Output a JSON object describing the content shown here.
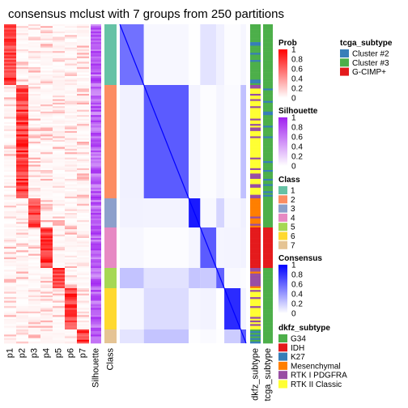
{
  "chart_data": {
    "type": "heatmap",
    "title": "consensus mclust with 7 groups from 250 partitions",
    "prob_columns": [
      "p1",
      "p2",
      "p3",
      "p4",
      "p5",
      "p6",
      "p7"
    ],
    "annotation_columns": {
      "silhouette": "Silhouette",
      "class": "Class",
      "dkfz": "dkfz_subtype",
      "tcga": "tcga_subtype"
    },
    "groups": [
      {
        "class": "1",
        "row_fraction": 0.19,
        "prob_col": 0
      },
      {
        "class": "2",
        "row_fraction": 0.355,
        "prob_col": 1
      },
      {
        "class": "3",
        "row_fraction": 0.092,
        "prob_col": 2
      },
      {
        "class": "4",
        "row_fraction": 0.126,
        "prob_col": 3
      },
      {
        "class": "5",
        "row_fraction": 0.064,
        "prob_col": 4
      },
      {
        "class": "6",
        "row_fraction": 0.13,
        "prob_col": 5
      },
      {
        "class": "7",
        "row_fraction": 0.043,
        "prob_col": 6
      }
    ],
    "legends": {
      "prob": {
        "title": "Prob",
        "ticks": [
          "1",
          "0.8",
          "0.6",
          "0.4",
          "0.2",
          "0"
        ],
        "colors": [
          "#ff0000",
          "#ffffff"
        ]
      },
      "silhouette": {
        "title": "Silhouette",
        "ticks": [
          "1",
          "0.8",
          "0.6",
          "0.4",
          "0.2",
          "0"
        ],
        "colors": [
          "#a020f0",
          "#ffffff"
        ]
      },
      "class": {
        "title": "Class",
        "levels": [
          {
            "label": "1",
            "color": "#66c2a5"
          },
          {
            "label": "2",
            "color": "#fc8d62"
          },
          {
            "label": "3",
            "color": "#8da0cb"
          },
          {
            "label": "4",
            "color": "#e78ac3"
          },
          {
            "label": "5",
            "color": "#a6d854"
          },
          {
            "label": "6",
            "color": "#ffd92f"
          },
          {
            "label": "7",
            "color": "#e5c494"
          }
        ]
      },
      "consensus": {
        "title": "Consensus",
        "ticks": [
          "1",
          "0.8",
          "0.6",
          "0.4",
          "0.2",
          "0"
        ],
        "colors": [
          "#0000ff",
          "#ffffff"
        ]
      },
      "dkfz": {
        "title": "dkfz_subtype",
        "levels": [
          {
            "label": "G34",
            "color": "#4daf4a"
          },
          {
            "label": "IDH",
            "color": "#e41a1c"
          },
          {
            "label": "K27",
            "color": "#377eb8"
          },
          {
            "label": "Mesenchymal",
            "color": "#ff7f00"
          },
          {
            "label": "RTK I PDGFRA",
            "color": "#984ea3"
          },
          {
            "label": "RTK II Classic",
            "color": "#ffff33"
          }
        ]
      },
      "tcga": {
        "title": "tcga_subtype",
        "levels": [
          {
            "label": "Cluster #2",
            "color": "#377eb8"
          },
          {
            "label": "Cluster #3",
            "color": "#4daf4a"
          },
          {
            "label": "G-CIMP+",
            "color": "#e41a1c"
          }
        ]
      }
    }
  }
}
